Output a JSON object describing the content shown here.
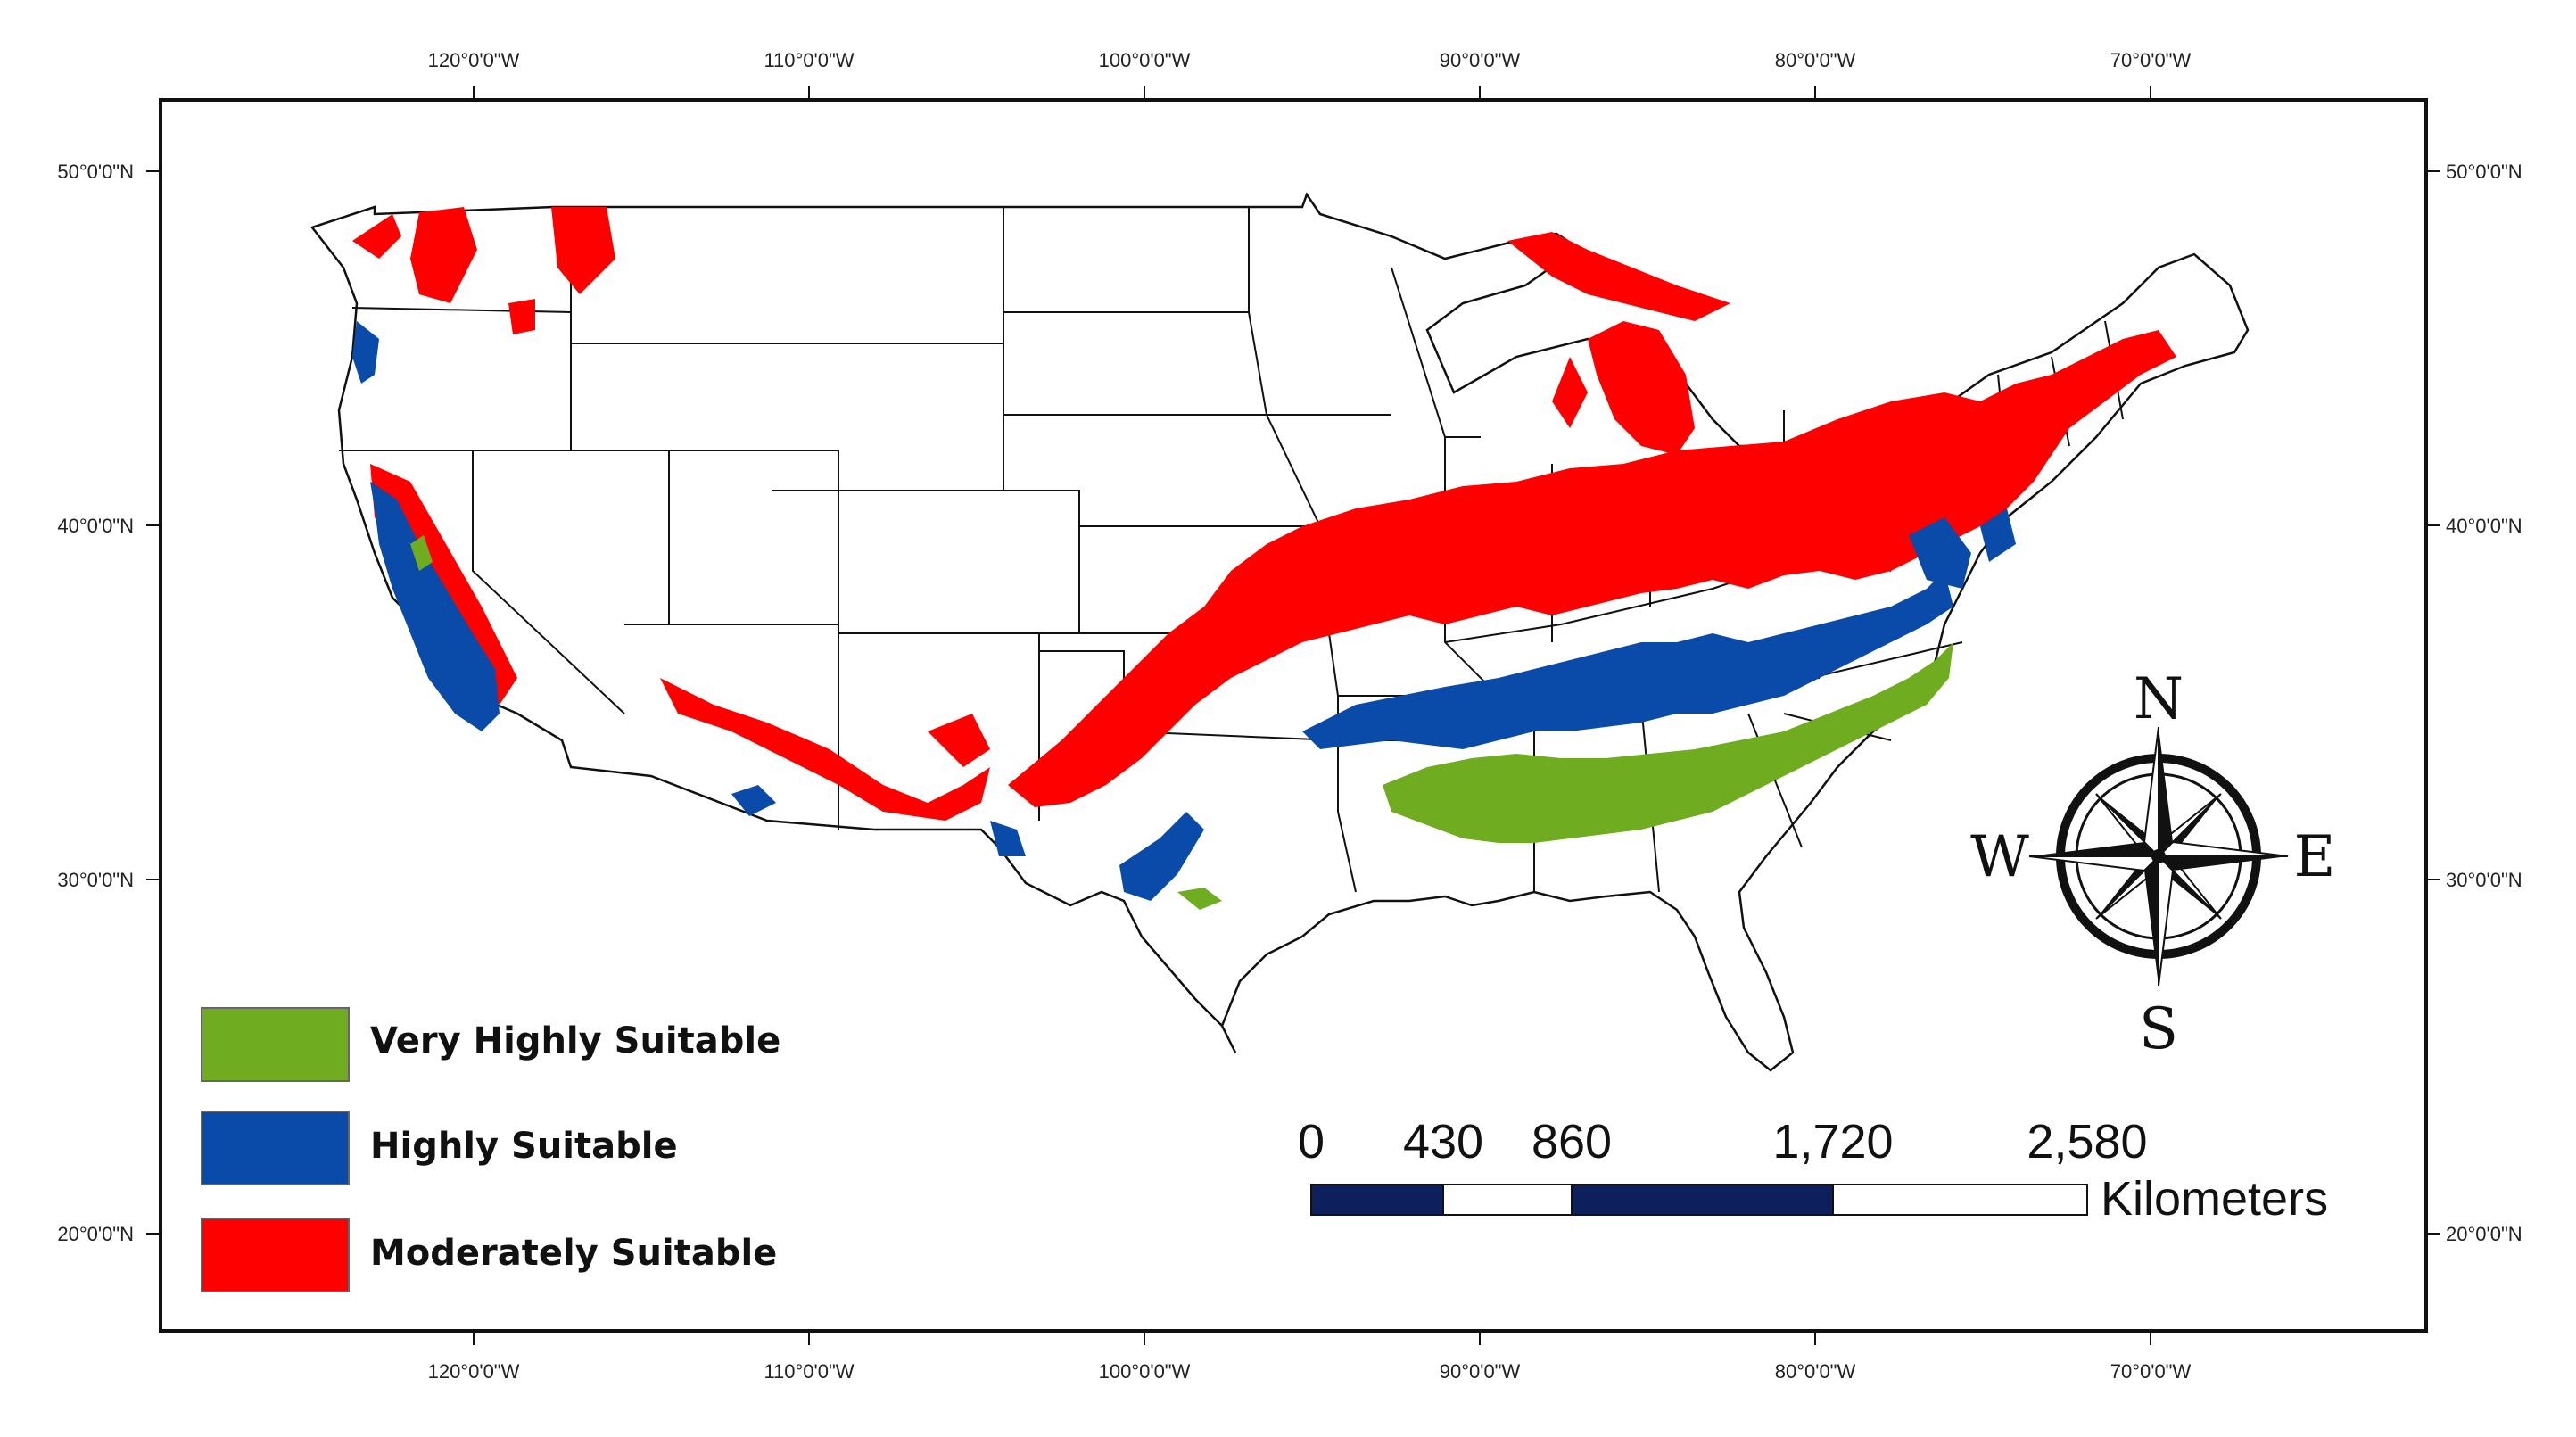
{
  "graticule": {
    "longitudes": [
      "120°0'0\"W",
      "110°0'0\"W",
      "100°0'0\"W",
      "90°0'0\"W",
      "80°0'0\"W",
      "70°0'0\"W"
    ],
    "latitudes": [
      "50°0'0\"N",
      "40°0'0\"N",
      "30°0'0\"N",
      "20°0'0\"N"
    ]
  },
  "legend": {
    "items": [
      {
        "label": "Very Highly Suitable",
        "color": "#6fac1f"
      },
      {
        "label": "Highly Suitable",
        "color": "#0a4aa8"
      },
      {
        "label": "Moderately Suitable",
        "color": "#ff0000"
      }
    ]
  },
  "scale_bar": {
    "ticks": [
      "0",
      "430",
      "860",
      "1,720",
      "2,580"
    ],
    "unit": "Kilometers"
  },
  "compass": {
    "north": "N",
    "south": "S",
    "east": "E",
    "west": "W"
  }
}
